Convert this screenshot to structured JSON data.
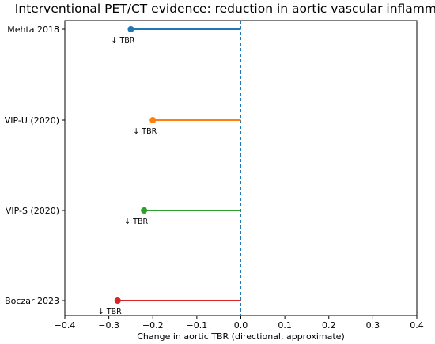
{
  "chart_data": {
    "type": "lollipop",
    "title": "Interventional PET/CT evidence: reduction in aortic vascular inflammation",
    "xlabel": "Change in aortic TBR (directional, approximate)",
    "ylabel": "",
    "xlim": [
      -0.4,
      0.4
    ],
    "xticks": [
      "−0.4",
      "−0.3",
      "−0.2",
      "−0.1",
      "0.0",
      "0.1",
      "0.2",
      "0.3",
      "0.4"
    ],
    "xtick_values": [
      -0.4,
      -0.3,
      -0.2,
      -0.1,
      0.0,
      0.1,
      0.2,
      0.3,
      0.4
    ],
    "reference_line": 0.0,
    "grid": false,
    "items": [
      {
        "label": "Mehta 2018",
        "value": -0.25,
        "color": "#1f77b4",
        "annotation": "↓ TBR"
      },
      {
        "label": "VIP-U (2020)",
        "value": -0.2,
        "color": "#ff7f0e",
        "annotation": "↓ TBR"
      },
      {
        "label": "VIP-S (2020)",
        "value": -0.22,
        "color": "#2ca02c",
        "annotation": "↓ TBR"
      },
      {
        "label": "Boczar 2023",
        "value": -0.28,
        "color": "#d62728",
        "annotation": "↓ TBR"
      }
    ]
  }
}
